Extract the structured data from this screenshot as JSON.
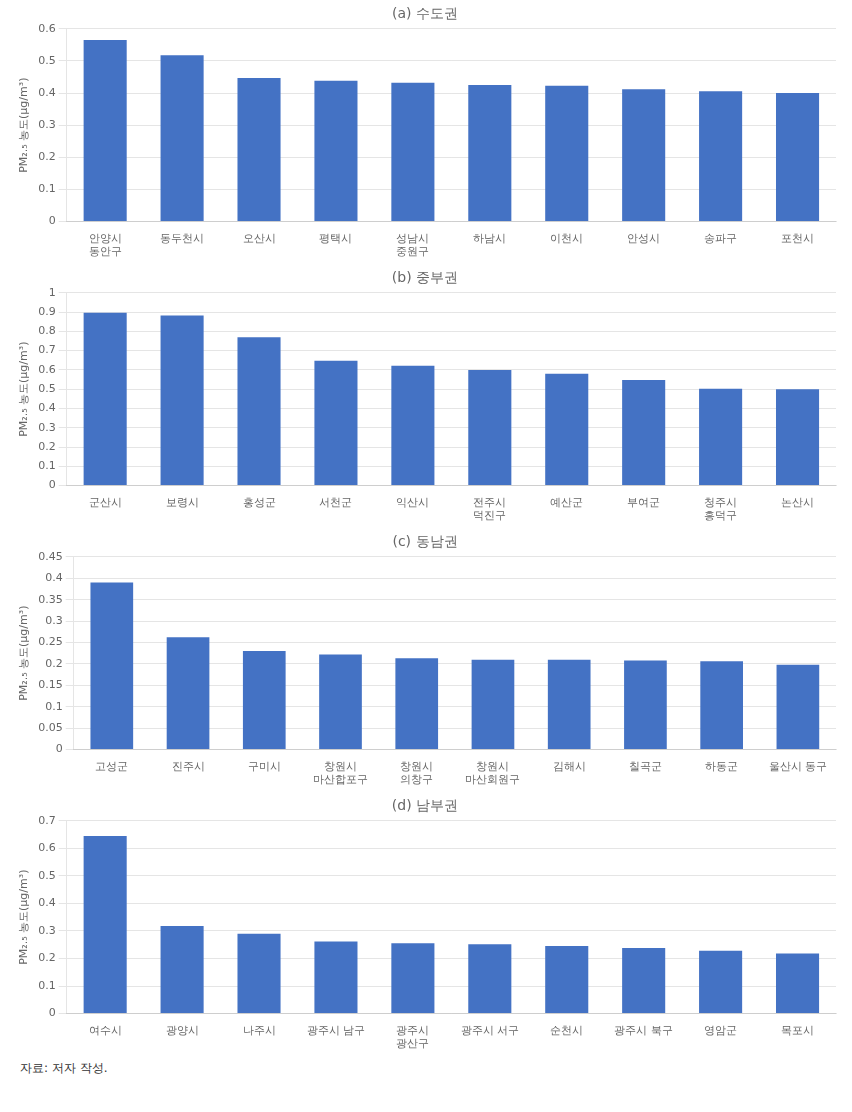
{
  "chart_data": [
    {
      "type": "bar",
      "title": "(a) 수도권",
      "categories": [
        "안양시\n동안구",
        "동두천시",
        "오산시",
        "평택시",
        "성남시\n중원구",
        "하남시",
        "이천시",
        "안성시",
        "송파구",
        "포천시"
      ],
      "values": [
        0.565,
        0.518,
        0.447,
        0.438,
        0.432,
        0.425,
        0.423,
        0.412,
        0.406,
        0.4
      ],
      "color": "#4472C4",
      "y_label": "PM₂.₅ 농도(μg/m³)",
      "ylim": [
        0,
        0.6
      ],
      "yticks": [
        0,
        0.1,
        0.2,
        0.3,
        0.4,
        0.5,
        0.6
      ],
      "grid": true
    },
    {
      "type": "bar",
      "title": "(b) 중부권",
      "categories": [
        "군산시",
        "보령시",
        "홍성군",
        "서천군",
        "익산시",
        "전주시\n덕진구",
        "예산군",
        "부여군",
        "청주시\n흥덕구",
        "논산시"
      ],
      "values": [
        0.897,
        0.882,
        0.77,
        0.648,
        0.622,
        0.6,
        0.58,
        0.548,
        0.502,
        0.5
      ],
      "color": "#4472C4",
      "y_label": "PM₂.₅ 농도(μg/m³)",
      "ylim": [
        0,
        1.0
      ],
      "yticks": [
        0,
        0.1,
        0.2,
        0.3,
        0.4,
        0.5,
        0.6,
        0.7,
        0.8,
        0.9,
        1
      ],
      "grid": true
    },
    {
      "type": "bar",
      "title": "(c) 동남권",
      "categories": [
        "고성군",
        "진주시",
        "구미시",
        "창원시\n마산합포구",
        "창원시\n의창구",
        "창원시\n마산회원구",
        "김해시",
        "칠곡군",
        "하동군",
        "울산시 동구"
      ],
      "values": [
        0.39,
        0.262,
        0.23,
        0.222,
        0.213,
        0.21,
        0.21,
        0.208,
        0.206,
        0.198
      ],
      "color": "#4472C4",
      "y_label": "PM₂.₅ 농도(μg/m³)",
      "ylim": [
        0,
        0.45
      ],
      "yticks": [
        0,
        0.05,
        0.1,
        0.15,
        0.2,
        0.25,
        0.3,
        0.35,
        0.4,
        0.45
      ],
      "grid": true
    },
    {
      "type": "bar",
      "title": "(d) 남부권",
      "categories": [
        "여수시",
        "광양시",
        "나주시",
        "광주시 남구",
        "광주시\n광산구",
        "광주시 서구",
        "순천시",
        "광주시 북구",
        "영암군",
        "목포시"
      ],
      "values": [
        0.645,
        0.318,
        0.29,
        0.262,
        0.255,
        0.252,
        0.245,
        0.238,
        0.228,
        0.218
      ],
      "color": "#4472C4",
      "y_label": "PM₂.₅ 농도(μg/m³)",
      "ylim": [
        0,
        0.7
      ],
      "yticks": [
        0,
        0.1,
        0.2,
        0.3,
        0.4,
        0.5,
        0.6,
        0.7
      ],
      "grid": true
    }
  ],
  "footnote": "자료: 저자 작성."
}
